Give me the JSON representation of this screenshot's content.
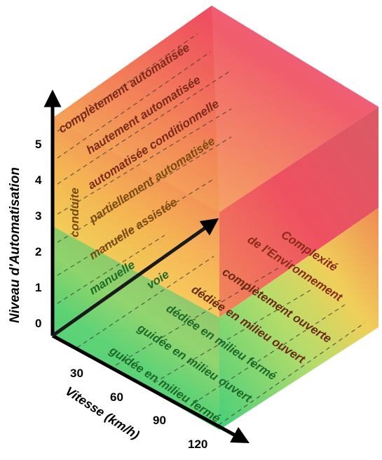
{
  "diagram": {
    "y_axis": {
      "title": "Niveau d'Automatisation",
      "ticks": [
        "0",
        "1",
        "2",
        "3",
        "4",
        "5"
      ]
    },
    "x_axis": {
      "title": "Vitesse (km/h)",
      "ticks": [
        "30",
        "60",
        "90",
        "120"
      ]
    },
    "z_axis": {
      "title_line1": "Complexité",
      "title_line2": "de l'Environnement"
    },
    "automation_levels": [
      "complètement automatisée",
      "hautement automatisée",
      "automatisée conditionnelle",
      "partiellement automatisée",
      "manuelle assistée",
      "manuelle"
    ],
    "driving_label": "conduite",
    "environment_levels": [
      "complètement ouverte",
      "dédiée en milieu ouvert",
      "dédiée en milieu fermé",
      "guidée en milieu ouvert",
      "guidée en milieu fermé"
    ],
    "track_label": "voie",
    "colors": {
      "green": "#3fcf7a",
      "yellow": "#f5dc55",
      "orange": "#f4a04a",
      "red": "#ef4d5e",
      "pink": "#e85aa0"
    }
  }
}
